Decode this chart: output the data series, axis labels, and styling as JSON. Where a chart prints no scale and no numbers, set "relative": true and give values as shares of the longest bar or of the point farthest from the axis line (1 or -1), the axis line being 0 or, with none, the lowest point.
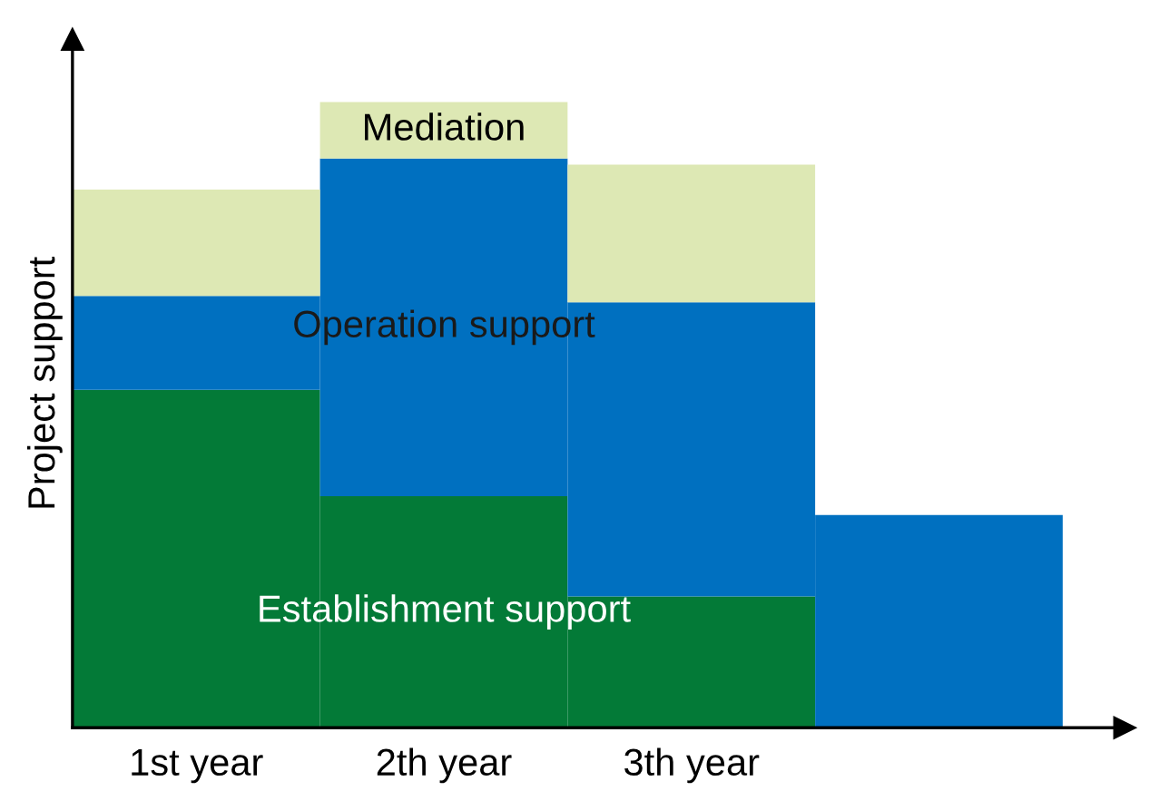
{
  "chart_data": {
    "type": "bar",
    "stacked": true,
    "relative": true,
    "ylabel": "Project support",
    "categories": [
      "1st year",
      "2th year",
      "3th year",
      null
    ],
    "series": [
      {
        "name": "Establishment support",
        "color": "#037a37",
        "values": [
          0.54,
          0.37,
          0.21,
          0
        ]
      },
      {
        "name": "Operation support",
        "color": "#0070c0",
        "values": [
          0.15,
          0.54,
          0.47,
          0.34
        ]
      },
      {
        "name": "Mediation",
        "color": "#dde8b4",
        "values": [
          0.17,
          0.09,
          0.22,
          0
        ]
      }
    ],
    "legend": false,
    "grid": false
  }
}
